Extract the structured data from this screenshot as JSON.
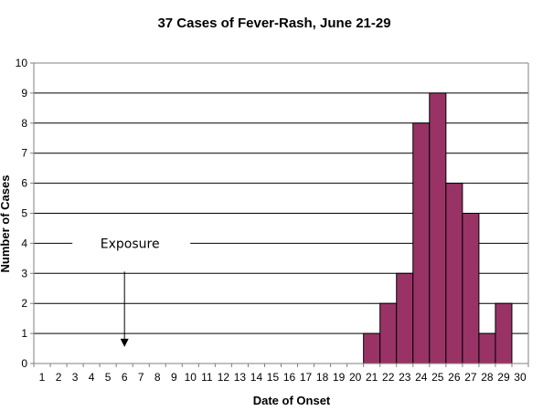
{
  "chart_data": {
    "type": "bar",
    "title": "37 Cases of Fever-Rash, June 21-29",
    "xlabel": "Date of Onset",
    "ylabel": "Number of Cases",
    "ylim": [
      0,
      10
    ],
    "y_ticks": [
      0,
      1,
      2,
      3,
      4,
      5,
      6,
      7,
      8,
      9,
      10
    ],
    "categories": [
      "1",
      "2",
      "3",
      "4",
      "5",
      "6",
      "7",
      "8",
      "9",
      "10",
      "11",
      "12",
      "13",
      "14",
      "15",
      "16",
      "17",
      "18",
      "19",
      "20",
      "21",
      "22",
      "23",
      "24",
      "25",
      "26",
      "27",
      "28",
      "29",
      "30"
    ],
    "values": [
      0,
      0,
      0,
      0,
      0,
      0,
      0,
      0,
      0,
      0,
      0,
      0,
      0,
      0,
      0,
      0,
      0,
      0,
      0,
      0,
      1,
      2,
      3,
      8,
      9,
      6,
      5,
      1,
      2,
      0
    ],
    "grid": true,
    "bar_color": "#993366",
    "annotations": [
      {
        "text": "Exposure",
        "category": "6"
      }
    ]
  }
}
